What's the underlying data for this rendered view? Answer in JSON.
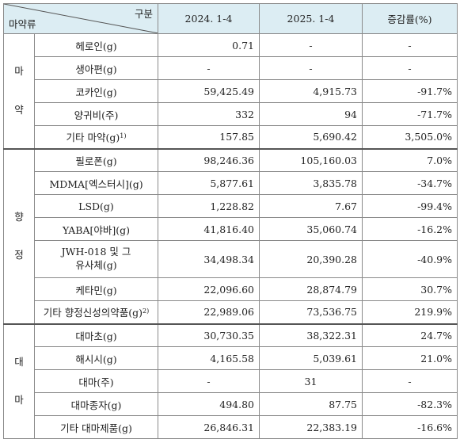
{
  "header": {
    "corner_top": "구분",
    "corner_bottom": "마약류",
    "col_2024": "2024. 1-4",
    "col_2025": "2025. 1-4",
    "col_change": "증감률(%)"
  },
  "groups": {
    "narcotics": [
      "마",
      "약"
    ],
    "psychotropics": [
      "향",
      "정"
    ],
    "cannabis": [
      "대",
      "마"
    ]
  },
  "rows": [
    {
      "name": "헤로인(g)",
      "v2024": "0.71",
      "v2025": "-",
      "change": "-"
    },
    {
      "name": "생아편(g)",
      "v2024": "-",
      "v2025": "-",
      "change": "-"
    },
    {
      "name": "코카인(g)",
      "v2024": "59,425.49",
      "v2025": "4,915.73",
      "change": "-91.7%"
    },
    {
      "name": "양귀비(주)",
      "v2024": "332",
      "v2025": "94",
      "change": "-71.7%"
    },
    {
      "name": "기타 마약(g)",
      "sup": "1)",
      "v2024": "157.85",
      "v2025": "5,690.42",
      "change": "3,505.0%"
    },
    {
      "name": "필로폰(g)",
      "v2024": "98,246.36",
      "v2025": "105,160.03",
      "change": "7.0%"
    },
    {
      "name": "MDMA[엑스터시](g)",
      "v2024": "5,877.61",
      "v2025": "3,835.78",
      "change": "-34.7%"
    },
    {
      "name": "LSD(g)",
      "v2024": "1,228.82",
      "v2025": "7.67",
      "change": "-99.4%"
    },
    {
      "name": "YABA[야바](g)",
      "v2024": "41,816.40",
      "v2025": "35,060.74",
      "change": "-16.2%"
    },
    {
      "name_line1": "JWH-018 및 그",
      "name_line2": "유사체(g)",
      "v2024": "34,498.34",
      "v2025": "20,390.28",
      "change": "-40.9%"
    },
    {
      "name": "케타민(g)",
      "v2024": "22,096.60",
      "v2025": "28,874.79",
      "change": "30.7%"
    },
    {
      "name": "기타 향정신성의약품(g)",
      "sup": "2)",
      "v2024": "22,989.06",
      "v2025": "73,536.75",
      "change": "219.9%"
    },
    {
      "name": "대마초(g)",
      "v2024": "30,730.35",
      "v2025": "38,322.31",
      "change": "24.7%"
    },
    {
      "name": "해시시(g)",
      "v2024": "4,165.58",
      "v2025": "5,039.61",
      "change": "21.0%"
    },
    {
      "name": "대마(주)",
      "v2024": "-",
      "v2025": "31",
      "change": "-"
    },
    {
      "name": "대마종자(g)",
      "v2024": "494.80",
      "v2025": "87.75",
      "change": "-82.3%"
    },
    {
      "name": "기타 대마제품(g)",
      "v2024": "26,846.31",
      "v2025": "22,383.19",
      "change": "-16.6%"
    }
  ]
}
